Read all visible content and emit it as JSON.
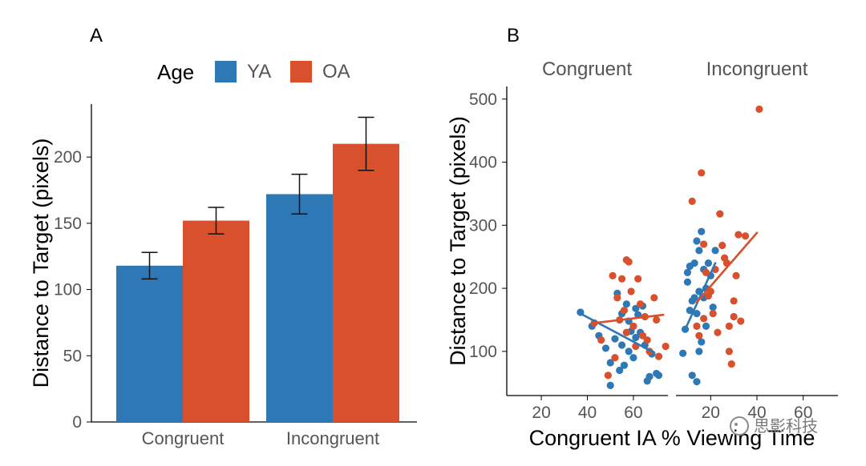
{
  "panel_a": {
    "label": "A",
    "legend": {
      "title": "Age",
      "items": [
        {
          "name": "YA",
          "color": "#2e78b5"
        },
        {
          "name": "OA",
          "color": "#d8502c"
        }
      ]
    }
  },
  "panel_b": {
    "label": "B",
    "strips": [
      "Congruent",
      "Incongruent"
    ]
  },
  "watermark": "思影科技",
  "chart_data": [
    {
      "type": "bar",
      "panel": "A",
      "categories": [
        "Congruent",
        "Incongruent"
      ],
      "series": [
        {
          "name": "YA",
          "color": "#2e78b5",
          "values": [
            118,
            172
          ],
          "error": [
            10,
            15
          ]
        },
        {
          "name": "OA",
          "color": "#d8502c",
          "values": [
            152,
            210
          ],
          "error": [
            10,
            20
          ]
        }
      ],
      "ylabel": "Distance to Target (pixels)",
      "yticks": [
        0,
        50,
        100,
        150,
        200
      ],
      "ylim": [
        0,
        240
      ]
    },
    {
      "type": "scatter",
      "panel": "B",
      "xlabel": "Congruent IA % Viewing Time",
      "ylabel": "Distance to Target (pixels)",
      "yticks": [
        100,
        200,
        300,
        400,
        500
      ],
      "ylim": [
        30,
        520
      ],
      "facets": [
        {
          "name": "Congruent",
          "xlim": [
            5,
            75
          ],
          "xticks": [
            20,
            40,
            60
          ],
          "series": [
            {
              "name": "YA",
              "color": "#2e78b5",
              "points": [
                [
                  37,
                  162
                ],
                [
                  42,
                  140
                ],
                [
                  45,
                  125
                ],
                [
                  48,
                  105
                ],
                [
                  50,
                  82
                ],
                [
                  50,
                  46
                ],
                [
                  52,
                  120
                ],
                [
                  53,
                  192
                ],
                [
                  54,
                  70
                ],
                [
                  55,
                  110
                ],
                [
                  55,
                  160
                ],
                [
                  56,
                  78
                ],
                [
                  57,
                  175
                ],
                [
                  58,
                  100
                ],
                [
                  58,
                  148
                ],
                [
                  59,
                  132
                ],
                [
                  60,
                  90
                ],
                [
                  61,
                  168
                ],
                [
                  61,
                  122
                ],
                [
                  62,
                  158
                ],
                [
                  63,
                  130
                ],
                [
                  64,
                  172
                ],
                [
                  65,
                  110
                ],
                [
                  66,
                  53
                ],
                [
                  67,
                  60
                ],
                [
                  68,
                  96
                ],
                [
                  70,
                  65
                ],
                [
                  71,
                  62
                ]
              ],
              "fit": [
                [
                  37,
                  160
                ],
                [
                  69,
                  98
                ]
              ]
            },
            {
              "name": "OA",
              "color": "#d8502c",
              "points": [
                [
                  43,
                  145
                ],
                [
                  46,
                  118
                ],
                [
                  49,
                  62
                ],
                [
                  51,
                  220
                ],
                [
                  52,
                  90
                ],
                [
                  53,
                  185
                ],
                [
                  54,
                  150
                ],
                [
                  55,
                  215
                ],
                [
                  56,
                  165
                ],
                [
                  57,
                  130
                ],
                [
                  57,
                  245
                ],
                [
                  58,
                  242
                ],
                [
                  59,
                  195
                ],
                [
                  60,
                  140
                ],
                [
                  61,
                  108
                ],
                [
                  62,
                  215
                ],
                [
                  63,
                  175
                ],
                [
                  64,
                  125
                ],
                [
                  65,
                  155
                ],
                [
                  66,
                  118
                ],
                [
                  67,
                  100
                ],
                [
                  69,
                  185
                ],
                [
                  70,
                  150
                ],
                [
                  71,
                  92
                ],
                [
                  74,
                  108
                ]
              ],
              "fit": [
                [
                  43,
                  145
                ],
                [
                  73,
                  158
                ]
              ]
            }
          ]
        },
        {
          "name": "Incongruent",
          "xlim": [
            5,
            75
          ],
          "xticks": [
            20,
            40,
            60
          ],
          "series": [
            {
              "name": "YA",
              "color": "#2e78b5",
              "points": [
                [
                  8,
                  97
                ],
                [
                  9,
                  135
                ],
                [
                  10,
                  210
                ],
                [
                  10,
                  225
                ],
                [
                  11,
                  235
                ],
                [
                  11,
                  165
                ],
                [
                  12,
                  62
                ],
                [
                  12,
                  180
                ],
                [
                  13,
                  240
                ],
                [
                  13,
                  185
                ],
                [
                  14,
                  52
                ],
                [
                  14,
                  275
                ],
                [
                  14,
                  160
                ],
                [
                  15,
                  195
                ],
                [
                  15,
                  100
                ],
                [
                  15,
                  260
                ],
                [
                  16,
                  290
                ],
                [
                  16,
                  115
                ],
                [
                  17,
                  230
                ],
                [
                  17,
                  185
                ],
                [
                  18,
                  140
                ],
                [
                  18,
                  200
                ],
                [
                  19,
                  240
                ],
                [
                  20,
                  220
                ],
                [
                  21,
                  170
                ],
                [
                  22,
                  260
                ]
              ],
              "fit": [
                [
                  9,
                  135
                ],
                [
                  22,
                  240
                ]
              ]
            },
            {
              "name": "OA",
              "color": "#d8502c",
              "points": [
                [
                  12,
                  338
                ],
                [
                  14,
                  140
                ],
                [
                  15,
                  125
                ],
                [
                  16,
                  383
                ],
                [
                  17,
                  152
                ],
                [
                  17,
                  270
                ],
                [
                  18,
                  225
                ],
                [
                  19,
                  188
                ],
                [
                  20,
                  195
                ],
                [
                  21,
                  160
                ],
                [
                  22,
                  230
                ],
                [
                  23,
                  130
                ],
                [
                  24,
                  318
                ],
                [
                  25,
                  268
                ],
                [
                  26,
                  248
                ],
                [
                  27,
                  240
                ],
                [
                  28,
                  100
                ],
                [
                  28,
                  140
                ],
                [
                  29,
                  80
                ],
                [
                  30,
                  155
                ],
                [
                  30,
                  180
                ],
                [
                  31,
                  220
                ],
                [
                  32,
                  285
                ],
                [
                  33,
                  148
                ],
                [
                  35,
                  283
                ],
                [
                  41,
                  484
                ]
              ],
              "fit": [
                [
                  14,
                  178
                ],
                [
                  40,
                  288
                ]
              ]
            }
          ]
        }
      ]
    }
  ]
}
